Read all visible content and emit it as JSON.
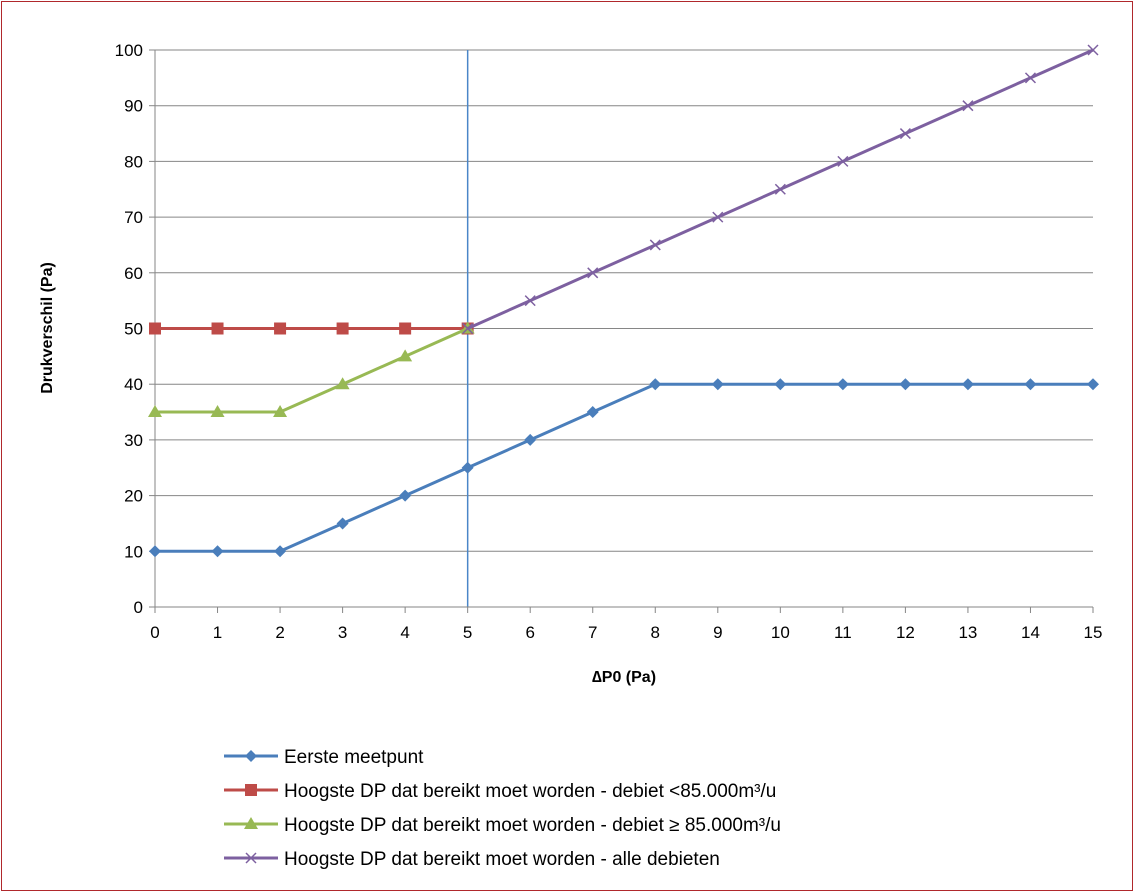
{
  "chart_data": {
    "type": "line",
    "title": "",
    "xlabel": "∆P0 (Pa)",
    "ylabel": "Drukverschil  (Pa)",
    "xlim": [
      0,
      15
    ],
    "ylim": [
      0,
      100
    ],
    "x_ticks": [
      "0",
      "1",
      "2",
      "3",
      "4",
      "5",
      "6",
      "7",
      "8",
      "9",
      "10",
      "11",
      "12",
      "13",
      "14",
      "15"
    ],
    "y_ticks": [
      "0",
      "10",
      "20",
      "30",
      "40",
      "50",
      "60",
      "70",
      "80",
      "90",
      "100"
    ],
    "y_tick_step": 10,
    "grid": "horizontal",
    "legend_position": "bottom",
    "reference_line": {
      "x": 5,
      "color": "#4a86c8"
    },
    "series": [
      {
        "name": "Eerste meetpunt",
        "color": "#4a7ebb",
        "marker": "diamond",
        "x": [
          0,
          1,
          2,
          3,
          4,
          5,
          6,
          7,
          8,
          9,
          10,
          11,
          12,
          13,
          14,
          15
        ],
        "y": [
          10,
          10,
          10,
          15,
          20,
          25,
          30,
          35,
          40,
          40,
          40,
          40,
          40,
          40,
          40,
          40
        ]
      },
      {
        "name": "Hoogste DP dat bereikt moet worden - debiet <85.000m³/u",
        "color": "#be4b48",
        "marker": "square",
        "x": [
          0,
          1,
          2,
          3,
          4,
          5
        ],
        "y": [
          50,
          50,
          50,
          50,
          50,
          50
        ]
      },
      {
        "name": "Hoogste DP dat bereikt moet worden - debiet ≥ 85.000m³/u",
        "color": "#98b954",
        "marker": "triangle",
        "x": [
          0,
          1,
          2,
          3,
          4,
          5
        ],
        "y": [
          35,
          35,
          35,
          40,
          45,
          50
        ]
      },
      {
        "name": "Hoogste DP dat bereikt moet worden - alle debieten",
        "color": "#7d60a0",
        "marker": "x",
        "x": [
          5,
          6,
          7,
          8,
          9,
          10,
          11,
          12,
          13,
          14,
          15
        ],
        "y": [
          50,
          55,
          60,
          65,
          70,
          75,
          80,
          85,
          90,
          95,
          100
        ]
      }
    ]
  }
}
